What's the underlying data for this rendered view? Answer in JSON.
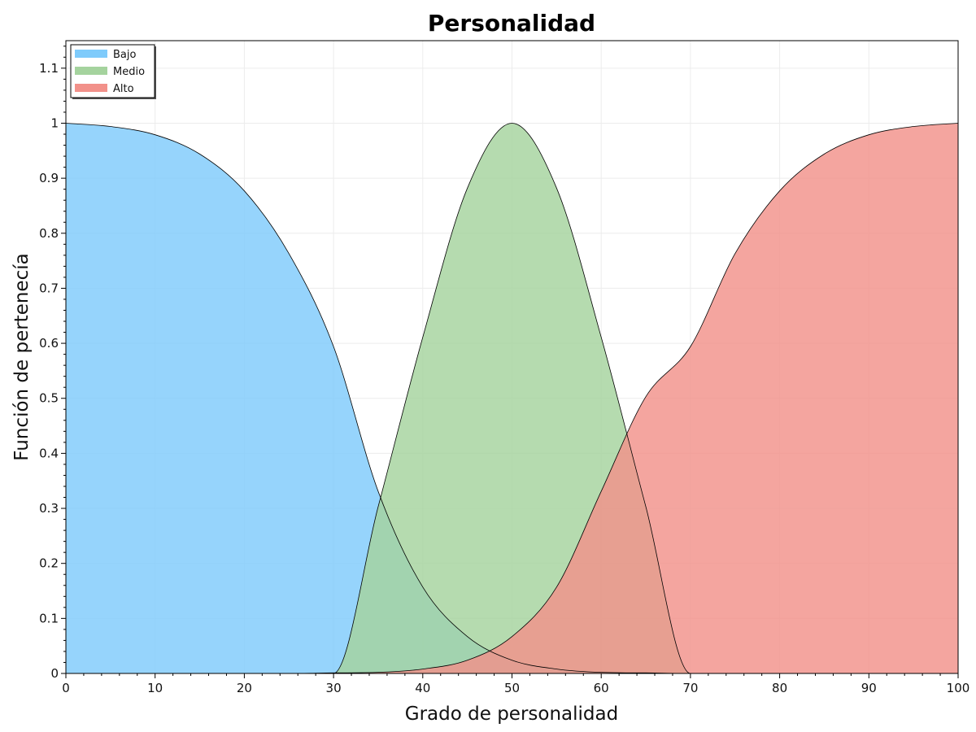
{
  "chart_data": {
    "type": "area",
    "title": "Personalidad",
    "xlabel": "Grado de personalidad",
    "ylabel": "Función de pertenecía",
    "xlim": [
      0,
      100
    ],
    "ylim": [
      0,
      1.15
    ],
    "xticks": [
      "0",
      "10",
      "20",
      "30",
      "40",
      "50",
      "60",
      "70",
      "80",
      "90",
      "100"
    ],
    "yticks": [
      "0",
      "0.1",
      "0.2",
      "0.3",
      "0.4",
      "0.5",
      "0.6",
      "0.7",
      "0.8",
      "0.9",
      "1",
      "1.1"
    ],
    "grid": true,
    "legend_position": "top-left",
    "x": [
      0,
      5,
      10,
      15,
      20,
      25,
      30,
      35,
      40,
      45,
      50,
      55,
      60,
      65,
      70,
      75,
      80,
      85,
      90,
      95,
      100
    ],
    "series": [
      {
        "name": "Bajo",
        "color": "#7fcbfb",
        "values": [
          1.0,
          0.994,
          0.979,
          0.944,
          0.877,
          0.763,
          0.594,
          0.331,
          0.157,
          0.067,
          0.024,
          0.008,
          0.002,
          0.001,
          0.0,
          0.0,
          0.0,
          0.0,
          0.0,
          0.0,
          0.0
        ]
      },
      {
        "name": "Medio",
        "color": "#a5d39e",
        "values": [
          0.0,
          0.0,
          0.0,
          0.0,
          0.0,
          0.0,
          0.0,
          0.303,
          0.611,
          0.882,
          1.0,
          0.882,
          0.611,
          0.303,
          0.0,
          0.0,
          0.0,
          0.0,
          0.0,
          0.0,
          0.0
        ]
      },
      {
        "name": "Alto",
        "color": "#f2918a",
        "values": [
          0.0,
          0.0,
          0.0,
          0.0,
          0.0,
          0.0,
          0.001,
          0.002,
          0.008,
          0.024,
          0.067,
          0.157,
          0.331,
          0.503,
          0.594,
          0.763,
          0.877,
          0.944,
          0.979,
          0.994,
          1.0
        ]
      }
    ]
  }
}
